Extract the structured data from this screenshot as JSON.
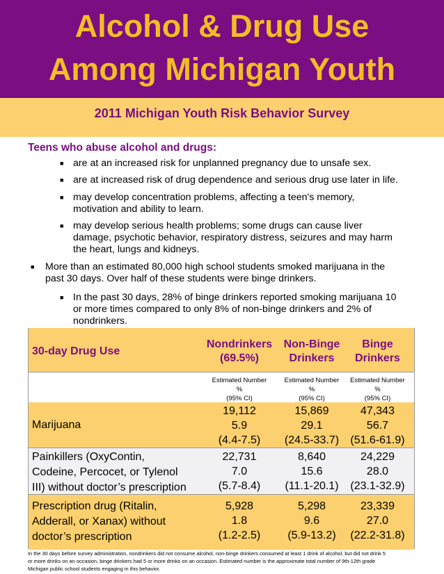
{
  "title": {
    "line1": "Alcohol & Drug Use",
    "line2": "Among Michigan Youth"
  },
  "subtitle": "2011 Michigan Youth Risk Behavior Survey",
  "heading": "Teens who abuse alcohol and drugs:",
  "bullets": [
    "are at an increased risk for unplanned pregnancy due to unsafe sex.",
    "are at increased risk of drug dependence and serious drug use later in life.",
    "may develop concentration problems, affecting a teen's memory,",
    "motivation and ability to learn.",
    "may develop serious health problems; some drugs can cause liver",
    "damage, psychotic behavior, respiratory distress, seizures and may harm",
    "the heart, lungs and kidneys."
  ],
  "bullet_main": [
    "More than an estimated 80,000 high school students smoked marijuana in the",
    "past 30 days. Over half of these students were binge drinkers."
  ],
  "bullet_sub": [
    "In the past 30 days, 28% of binge drinkers reported smoking marijuana 10",
    "or more times compared to only 8% of non-binge drinkers and 2% of",
    "nondrinkers."
  ],
  "table": {
    "row_header": "30-day Drug Use",
    "columns": [
      {
        "line1": "Nondrinkers",
        "line2": "(69.5%)"
      },
      {
        "line1": "Non-Binge",
        "line2": "Drinkers"
      },
      {
        "line1": "Binge",
        "line2": "Drinkers"
      }
    ],
    "estimate_label": {
      "line1": "Estimated Number",
      "line2": "%",
      "line3": "(95% CI)"
    },
    "rows": [
      {
        "label": [
          "Marijuana"
        ],
        "cells": [
          [
            "19,112",
            "5.9",
            "(4.4-7.5)"
          ],
          [
            "15,869",
            "29.1",
            "(24.5-33.7)"
          ],
          [
            "47,343",
            "56.7",
            "(51.6-61.9)"
          ]
        ]
      },
      {
        "label": [
          "Painkillers (OxyContin,",
          "Codeine, Percocet, or Tylenol",
          "III) without doctor’s prescription"
        ],
        "cells": [
          [
            "22,731",
            "7.0",
            "(5.7-8.4)"
          ],
          [
            "8,640",
            "15.6",
            "(11.1-20.1)"
          ],
          [
            "24,229",
            "28.0",
            "(23.1-32.9)"
          ]
        ]
      },
      {
        "label": [
          "Prescription drug (Ritalin,",
          "Adderall, or Xanax) without",
          "doctor’s prescription"
        ],
        "cells": [
          [
            "5,928",
            "1.8",
            "(1.2-2.5)"
          ],
          [
            "5,298",
            "9.6",
            "(5.9-13.2)"
          ],
          [
            "23,339",
            "27.0",
            "(22.2-31.8)"
          ]
        ]
      }
    ]
  },
  "footnote": [
    "In the 30 days before survey administration, nondrinkers did not consume alcohol, non-binge drinkers consumed at least 1 drink of alcohol, but did not drink 5",
    "or more drinks on an occasion, binge drinkers had 5 or more drinks on an occasion. Estimated number is the approximate total number of 9th-12th grade",
    "Michigan public school students engaging in this behavior."
  ],
  "colors": {
    "purple": "#7a0e82",
    "gold": "#f2bd26",
    "light_gold": "#fcd06e"
  }
}
